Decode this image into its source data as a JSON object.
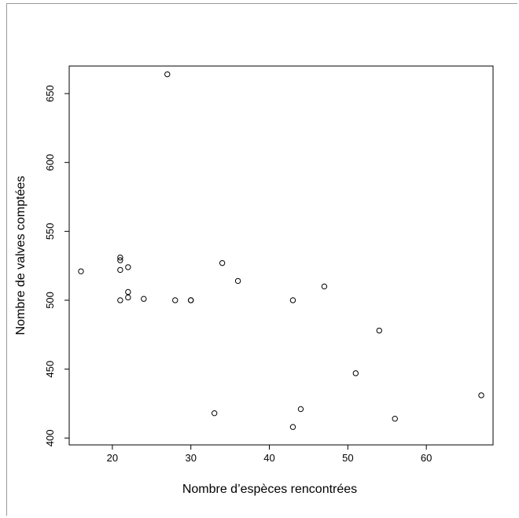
{
  "chart_data": {
    "type": "scatter",
    "title": "",
    "xlabel": "Nombre d’espèces rencontrées",
    "ylabel": "Nombre de valves comptées",
    "xlim": [
      14.5,
      68.5
    ],
    "ylim": [
      395,
      670
    ],
    "x_ticks": [
      20,
      30,
      40,
      50,
      60
    ],
    "y_ticks": [
      400,
      450,
      500,
      550,
      600,
      650
    ],
    "x_tick_labels": [
      "20",
      "30",
      "40",
      "50",
      "60"
    ],
    "y_tick_labels": [
      "400",
      "450",
      "500",
      "550",
      "600",
      "650"
    ],
    "grid": false,
    "series": [
      {
        "points": [
          {
            "x": 16,
            "y": 521
          },
          {
            "x": 21,
            "y": 531
          },
          {
            "x": 21,
            "y": 529
          },
          {
            "x": 21,
            "y": 522
          },
          {
            "x": 21,
            "y": 500
          },
          {
            "x": 22,
            "y": 524
          },
          {
            "x": 22,
            "y": 506
          },
          {
            "x": 22,
            "y": 502
          },
          {
            "x": 24,
            "y": 501
          },
          {
            "x": 27,
            "y": 664
          },
          {
            "x": 28,
            "y": 500
          },
          {
            "x": 30,
            "y": 500
          },
          {
            "x": 30,
            "y": 500
          },
          {
            "x": 33,
            "y": 418
          },
          {
            "x": 34,
            "y": 527
          },
          {
            "x": 36,
            "y": 514
          },
          {
            "x": 43,
            "y": 500
          },
          {
            "x": 43,
            "y": 408
          },
          {
            "x": 44,
            "y": 421
          },
          {
            "x": 47,
            "y": 510
          },
          {
            "x": 51,
            "y": 447
          },
          {
            "x": 54,
            "y": 478
          },
          {
            "x": 56,
            "y": 414
          },
          {
            "x": 67,
            "y": 431
          }
        ]
      }
    ]
  }
}
